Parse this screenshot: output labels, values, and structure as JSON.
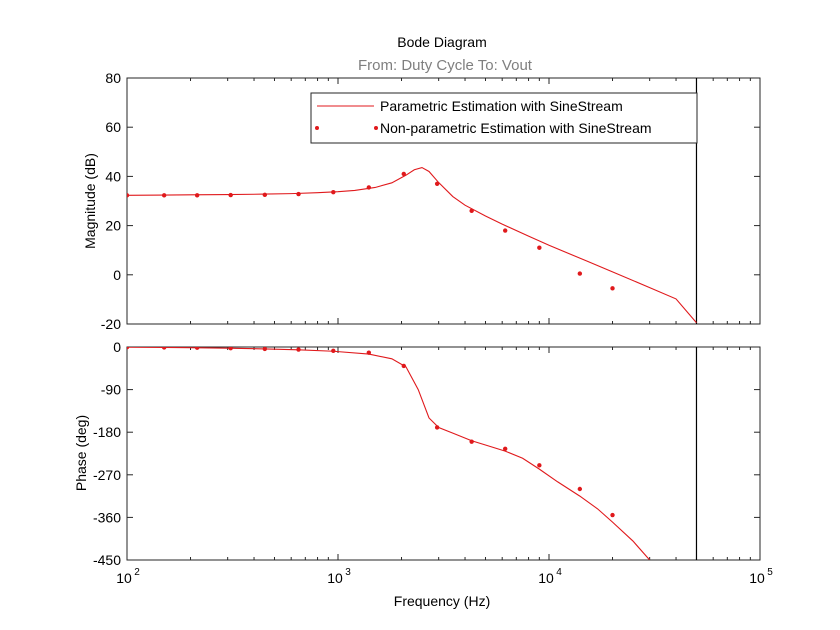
{
  "chart_data": {
    "type": "line",
    "title": "Bode Diagram",
    "subtitle": "From: Duty Cycle  To: Vout",
    "xlabel": "Frequency  (Hz)",
    "x_scale": "log",
    "xlim": [
      100,
      100000
    ],
    "x_ticks": [
      {
        "value": 100,
        "base": "10",
        "exp": "2"
      },
      {
        "value": 1000,
        "base": "10",
        "exp": "3"
      },
      {
        "value": 10000,
        "base": "10",
        "exp": "4"
      },
      {
        "value": 100000,
        "base": "10",
        "exp": "5"
      }
    ],
    "vertical_marker_x": 50000,
    "legend": {
      "placement": "top-right",
      "entries": [
        {
          "label": "Parametric Estimation with SineStream",
          "style": "line"
        },
        {
          "label": "Non-parametric Estimation with SineStream",
          "style": "dots"
        }
      ]
    },
    "colors": {
      "series": "#e0191c",
      "axis": "#262626",
      "subtitle": "#7f7f7f"
    },
    "panels": [
      {
        "ylabel": "Magnitude (dB)",
        "ylim": [
          -20,
          80
        ],
        "yticks": [
          -20,
          0,
          20,
          40,
          60,
          80
        ],
        "series": [
          {
            "name": "Parametric Estimation with SineStream",
            "x": [
              100,
              150,
              200,
              300,
              450,
              600,
              800,
              1000,
              1200,
              1500,
              1800,
              2100,
              2300,
              2500,
              2700,
              3000,
              3500,
              4000,
              5000,
              6000,
              8000,
              10000,
              15000,
              20000,
              30000,
              40000,
              50000
            ],
            "y": [
              32.3,
              32.4,
              32.5,
              32.6,
              32.8,
              33.0,
              33.4,
              33.8,
              34.3,
              35.5,
              37.4,
              40.5,
              42.7,
              43.6,
              42.0,
              37.5,
              31.8,
              28.3,
              23.9,
              20.6,
              15.7,
              12.0,
              5.7,
              1.2,
              -5.2,
              -9.8,
              -19.5
            ]
          },
          {
            "name": "Non-parametric Estimation with SineStream",
            "x": [
              100,
              150,
              215,
              310,
              450,
              650,
              950,
              1400,
              2050,
              2950,
              4300,
              6200,
              9000,
              14000,
              20000
            ],
            "y": [
              32.3,
              32.3,
              32.3,
              32.4,
              32.5,
              32.8,
              33.6,
              35.5,
              41.0,
              37.0,
              26.0,
              18.0,
              11.0,
              0.5,
              -5.5
            ]
          }
        ]
      },
      {
        "ylabel": "Phase (deg)",
        "ylim": [
          -450,
          0
        ],
        "yticks": [
          -450,
          -360,
          -270,
          -180,
          -90,
          0
        ],
        "series": [
          {
            "name": "Parametric Estimation with SineStream",
            "x": [
              100,
              150,
              200,
              300,
              450,
              650,
              950,
              1400,
              1800,
              2100,
              2400,
              2700,
              3000,
              3500,
              4300,
              5000,
              6200,
              7500,
              9000,
              11000,
              14000,
              17000,
              20000,
              25000,
              30000
            ],
            "y": [
              -0.5,
              -1,
              -1.5,
              -2.5,
              -4,
              -6,
              -9,
              -15,
              -25,
              -42,
              -90,
              -150,
              -170,
              -182,
              -198,
              -207,
              -220,
              -235,
              -258,
              -285,
              -315,
              -342,
              -370,
              -410,
              -450
            ]
          },
          {
            "name": "Non-parametric Estimation with SineStream",
            "x": [
              100,
              150,
              215,
              310,
              450,
              650,
              950,
              1400,
              2050,
              2950,
              4300,
              6200,
              9000,
              14000,
              20000
            ],
            "y": [
              -0.5,
              -1,
              -1.5,
              -2.5,
              -4,
              -5.5,
              -8,
              -12,
              -40,
              -170,
              -200,
              -215,
              -250,
              -300,
              -355
            ]
          }
        ]
      }
    ]
  }
}
